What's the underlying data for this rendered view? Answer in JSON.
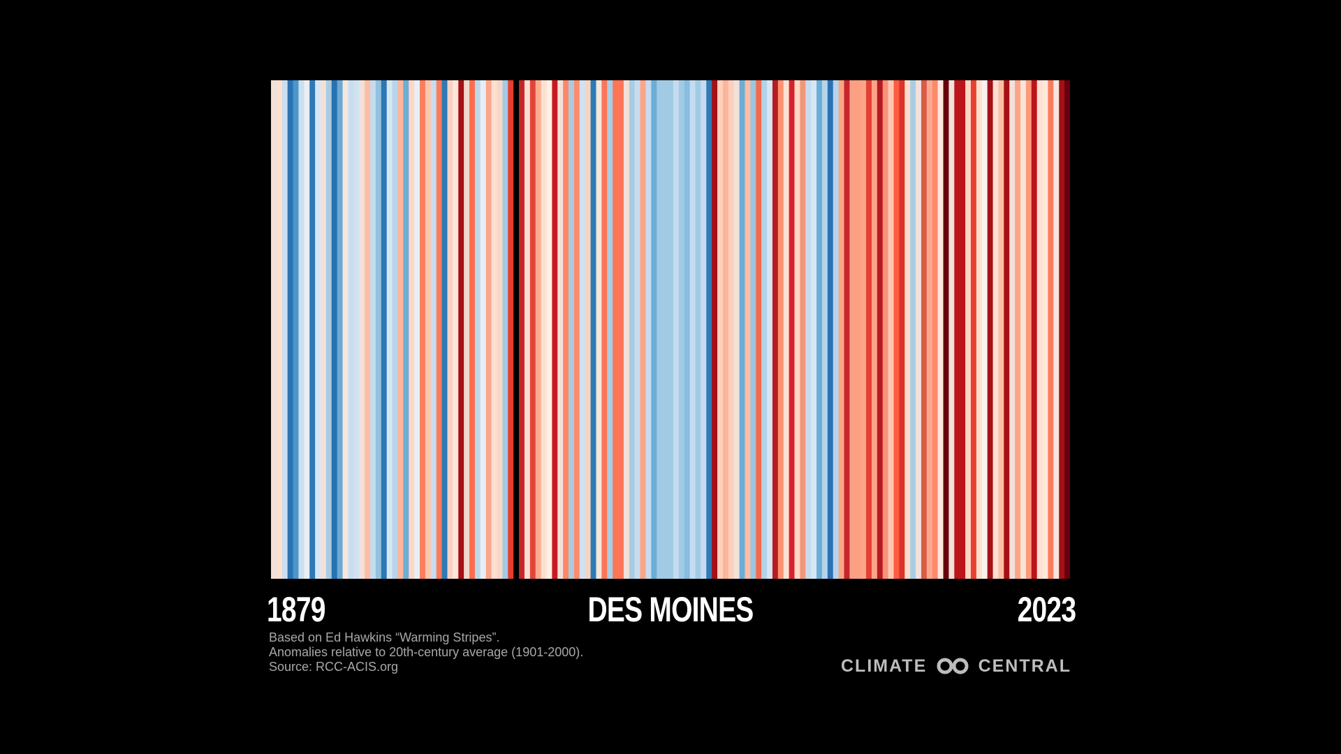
{
  "chart_data": {
    "type": "heatmap",
    "title": "DES MOINES",
    "x_start_label": "1879",
    "x_end_label": "2023",
    "x_start": 1879,
    "x_end": 2023,
    "colors": [
      "#f2e1d9",
      "#fce0d0",
      "#cadef0",
      "#2b72b3",
      "#4b97c9",
      "#cbdff0",
      "#e8eef4",
      "#2f79b5",
      "#d6e6f4",
      "#f2e1d9",
      "#a9cce3",
      "#2871b2",
      "#6aa9d3",
      "#f7e6de",
      "#c8ddf0",
      "#d0e2f2",
      "#f2e1d9",
      "#fcbda4",
      "#c5dbef",
      "#93c1de",
      "#2c77b4",
      "#d6e6f4",
      "#b7d4ea",
      "#fbb69c",
      "#6aaed6",
      "#fdd7c6",
      "#e8eef4",
      "#fb7d5d",
      "#fcc6ad",
      "#c7ddf0",
      "#fb7c5c",
      "#2f79b5",
      "#f5d2c4",
      "#fde5d9",
      "#a50f15",
      "#f0d8cd",
      "#fb6d4c",
      "#bcd9ec",
      "#e8eef4",
      "#fca68b",
      "#fce0d0",
      "#f9d5c6",
      "#a2cae4",
      "#e83d2f",
      "#000000",
      "#c6262b",
      "#fde0d0",
      "#e0453a",
      "#fbac90",
      "#fde0d0",
      "#fef0e6",
      "#c81b21",
      "#f2e1d9",
      "#fc8767",
      "#a9cce3",
      "#fc8c6d",
      "#d0e2f2",
      "#f4d4c4",
      "#2c7bb6",
      "#f5e6de",
      "#fb7656",
      "#a8cde4",
      "#fb7656",
      "#fb7656",
      "#f2e1d9",
      "#a9cce3",
      "#c7dcef",
      "#fca486",
      "#c6dbef",
      "#6aaed6",
      "#a1cbe4",
      "#a1cbe4",
      "#a1cbe4",
      "#c6dbef",
      "#a1cbe4",
      "#87bde0",
      "#c6dbef",
      "#a1cbe4",
      "#c6dbef",
      "#2f7bb6",
      "#a50f15",
      "#fdd0bc",
      "#fcb49a",
      "#fdd0bc",
      "#f2e1d9",
      "#6aaed6",
      "#fcbda4",
      "#9dc6e1",
      "#f26c4f",
      "#b2d2e8",
      "#d6e6f4",
      "#b51d21",
      "#fc9272",
      "#fbe0d3",
      "#d6222a",
      "#fdd8c7",
      "#f09778",
      "#c6dbef",
      "#d6e6f4",
      "#6aaed6",
      "#b7d4ea",
      "#2a72b3",
      "#b7d4ea",
      "#fca486",
      "#c6262b",
      "#fba083",
      "#fba083",
      "#fca486",
      "#e33f33",
      "#fca486",
      "#b61b23",
      "#f8937a",
      "#fdc8b0",
      "#ff5c45",
      "#d93427",
      "#fcdccc",
      "#a9cce3",
      "#f2e1d9",
      "#d95b48",
      "#fda990",
      "#fc8a6a",
      "#fde8de",
      "#67000d",
      "#f2e1d9",
      "#bc141a",
      "#bc141a",
      "#fdd5c3",
      "#e8412f",
      "#fde0d0",
      "#f8f1ef",
      "#a50f15",
      "#fce0d0",
      "#fcbea5",
      "#a50f15",
      "#f2e1d9",
      "#fca486",
      "#fde2d6",
      "#fb9a7a",
      "#bc141a",
      "#fde0d0",
      "#fee8dc",
      "#fb7c5c",
      "#f5e6e0",
      "#a50f15",
      "#67000d"
    ]
  },
  "footnotes": {
    "line1": "Based on Ed Hawkins “Warming Stripes”.",
    "line2": "Anomalies relative to 20th-century average (1901-2000).",
    "line3": "Source: RCC-ACIS.org"
  },
  "brand": {
    "word1": "CLIMATE",
    "word2": "CENTRAL",
    "logo_icon": "interlocking-rings-icon"
  }
}
